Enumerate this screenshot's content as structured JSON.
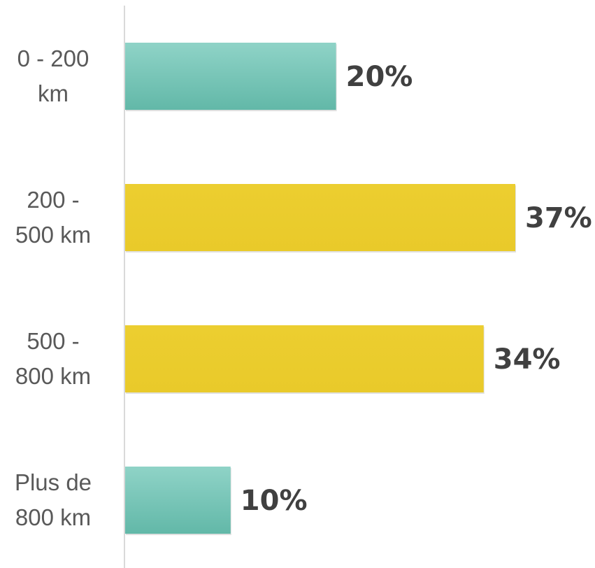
{
  "chart_data": {
    "type": "bar",
    "orientation": "horizontal",
    "categories": [
      [
        "0 - 200",
        "km"
      ],
      [
        "200 -",
        "500 km"
      ],
      [
        "500 -",
        "800 km"
      ],
      [
        "Plus de",
        "800 km"
      ]
    ],
    "values": [
      20,
      37,
      34,
      10
    ],
    "value_labels": [
      "20%",
      "37%",
      "34%",
      "10%"
    ],
    "unit": "%",
    "colors": [
      "#76c7b9",
      "#ebcd2e",
      "#ebcd2e",
      "#76c7b9"
    ],
    "xlim": [
      0,
      37
    ],
    "grid": false,
    "legend": "none",
    "title": "",
    "xlabel": "",
    "ylabel": ""
  }
}
